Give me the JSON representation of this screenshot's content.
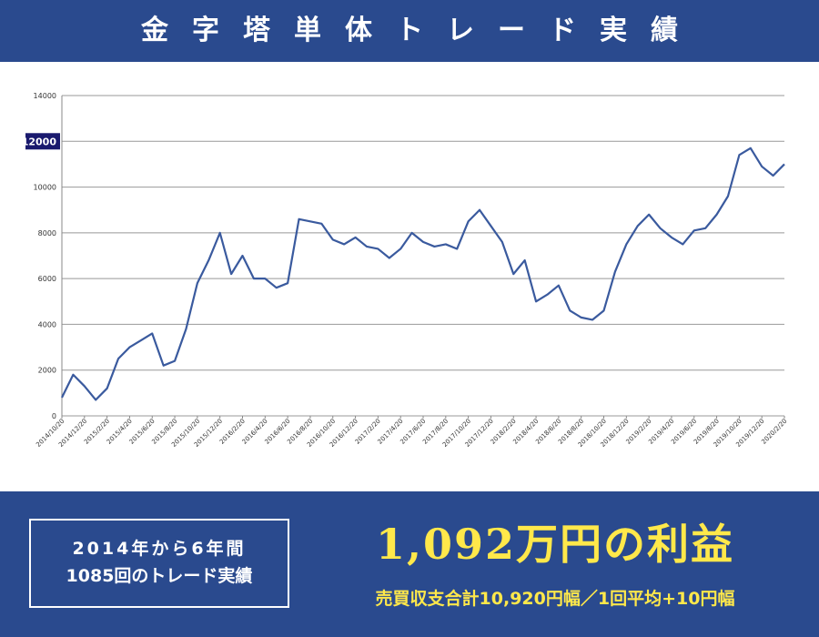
{
  "header": {
    "title": "金字塔単体トレード実績"
  },
  "chart_data": {
    "type": "line",
    "x": [
      "2014/10/20",
      "2014/11/20",
      "2014/12/20",
      "2015/1/20",
      "2015/2/20",
      "2015/3/20",
      "2015/4/20",
      "2015/5/20",
      "2015/6/20",
      "2015/7/20",
      "2015/8/20",
      "2015/9/20",
      "2015/10/20",
      "2015/11/20",
      "2015/12/20",
      "2016/1/20",
      "2016/2/20",
      "2016/3/20",
      "2016/4/20",
      "2016/5/20",
      "2016/6/20",
      "2016/7/20",
      "2016/8/20",
      "2016/9/20",
      "2016/10/20",
      "2016/11/20",
      "2016/12/20",
      "2017/1/20",
      "2017/2/20",
      "2017/3/20",
      "2017/4/20",
      "2017/5/20",
      "2017/6/20",
      "2017/7/20",
      "2017/8/20",
      "2017/9/20",
      "2017/10/20",
      "2017/11/20",
      "2017/12/20",
      "2018/1/20",
      "2018/2/20",
      "2018/3/20",
      "2018/4/20",
      "2018/5/20",
      "2018/6/20",
      "2018/7/20",
      "2018/8/20",
      "2018/9/20",
      "2018/10/20",
      "2018/11/20",
      "2018/12/20",
      "2019/1/20",
      "2019/2/20",
      "2019/3/20",
      "2019/4/20",
      "2019/5/20",
      "2019/6/20",
      "2019/7/20",
      "2019/8/20",
      "2019/9/20",
      "2019/10/20",
      "2019/11/20",
      "2019/12/20",
      "2020/1/20",
      "2020/2/20"
    ],
    "series": [
      {
        "color": "#3a5a9e",
        "values": [
          800,
          1800,
          1300,
          700,
          1200,
          2500,
          3000,
          3300,
          3600,
          2200,
          2400,
          3800,
          5800,
          6800,
          8000,
          6200,
          7000,
          6000,
          6000,
          5600,
          5800,
          8600,
          8500,
          8400,
          7700,
          7500,
          7800,
          7400,
          7300,
          6900,
          7300,
          8000,
          7600,
          7400,
          7500,
          7300,
          8500,
          9000,
          8300,
          7600,
          6200,
          6800,
          5000,
          5300,
          5700,
          4600,
          4300,
          4200,
          4600,
          6300,
          7500,
          8300,
          8800,
          8200,
          7800,
          7500,
          8100,
          8200,
          8800,
          9600,
          11400,
          11700,
          10900,
          10500,
          11000
        ]
      }
    ],
    "xlim": [
      "2014/10/20",
      "2020/2/20"
    ],
    "xticks": [
      "2014/10/20",
      "2014/12/20",
      "2015/2/20",
      "2015/4/20",
      "2015/6/20",
      "2015/8/20",
      "2015/10/20",
      "2015/12/20",
      "2016/2/20",
      "2016/4/20",
      "2016/6/20",
      "2016/8/20",
      "2016/10/20",
      "2016/12/20",
      "2017/2/20",
      "2017/4/20",
      "2017/6/20",
      "2017/8/20",
      "2017/10/20",
      "2017/12/20",
      "2018/2/20",
      "2018/4/20",
      "2018/6/20",
      "2018/8/20",
      "2018/10/20",
      "2018/12/20",
      "2019/2/20",
      "2019/4/20",
      "2019/6/20",
      "2019/8/20",
      "2019/10/20",
      "2019/12/20",
      "2020/2/20"
    ],
    "ylim": [
      0,
      14000
    ],
    "yticks": [
      0,
      2000,
      4000,
      6000,
      8000,
      10000,
      12000,
      14000
    ],
    "highlight_ytick": 12000,
    "grid": true
  },
  "summary": {
    "period": "2014年から6年間",
    "trades": "1085回のトレード実績",
    "profit": "1,092万円の利益",
    "detail": "売買収支合計10,920円幅／1回平均+10円幅"
  }
}
